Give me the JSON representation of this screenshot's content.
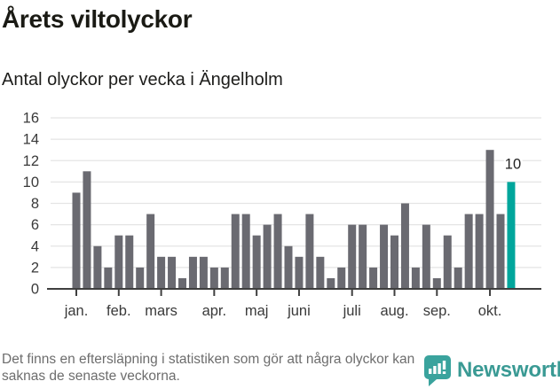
{
  "header": {
    "title": "Årets viltolyckor",
    "subtitle": "Antal olyckor per vecka i Ängelholm"
  },
  "chart_data": {
    "type": "bar",
    "title": "Årets viltolyckor",
    "subtitle": "Antal olyckor per vecka i Ängelholm",
    "x_unit": "vecka",
    "values": [
      9,
      11,
      4,
      2,
      5,
      5,
      2,
      7,
      3,
      3,
      1,
      3,
      3,
      2,
      2,
      7,
      7,
      5,
      6,
      7,
      4,
      3,
      7,
      3,
      1,
      2,
      6,
      6,
      2,
      6,
      5,
      8,
      2,
      6,
      1,
      5,
      2,
      7,
      7,
      13,
      7,
      10
    ],
    "highlight": {
      "index": 41,
      "value": 10,
      "label": "10"
    },
    "months": [
      {
        "label": "jan.",
        "week": 1
      },
      {
        "label": "feb.",
        "week": 5
      },
      {
        "label": "mars",
        "week": 9
      },
      {
        "label": "apr.",
        "week": 14
      },
      {
        "label": "maj",
        "week": 18
      },
      {
        "label": "juni",
        "week": 22
      },
      {
        "label": "juli",
        "week": 27
      },
      {
        "label": "aug.",
        "week": 31
      },
      {
        "label": "sep.",
        "week": 35
      },
      {
        "label": "okt.",
        "week": 40
      }
    ],
    "ylim": [
      0,
      16
    ],
    "yticks": [
      0,
      2,
      4,
      6,
      8,
      10,
      12,
      14,
      16
    ],
    "grid": true,
    "legend": false,
    "colors": {
      "bar": "#6a6a71",
      "highlight": "#00a69c",
      "grid": "#e4e4e4",
      "axis": "#3f3f3f",
      "tick_label": "#3a3a3a",
      "annotation": "#222222"
    }
  },
  "footer": {
    "note": "Det finns en eftersläpning i statistiken som gör att några olyckor kan saknas de senaste veckorna.",
    "brand": "Newsworthy",
    "brand_color": "#3a9a94",
    "logo_color": "#3aa39d"
  }
}
